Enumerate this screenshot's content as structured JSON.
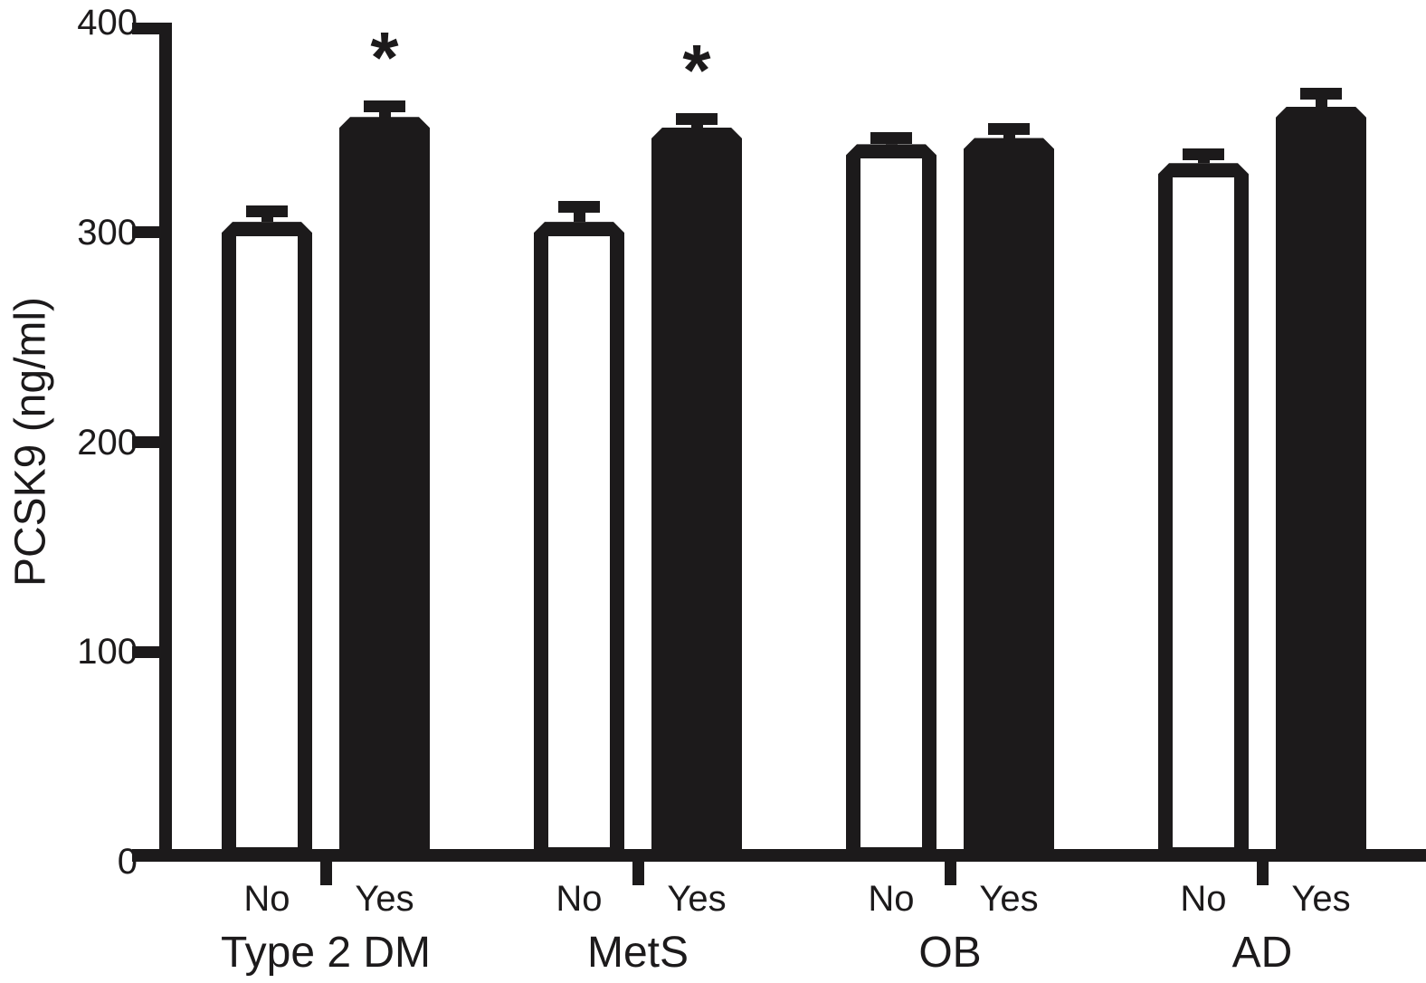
{
  "figure": {
    "background": "#ffffff",
    "ink_color": "#1c1a1b",
    "bar_fill_open": "#ffffff",
    "bar_fill_solid": "#1c1a1b"
  },
  "chart_data": {
    "type": "bar",
    "title": "",
    "xlabel": "",
    "ylabel": "PCSK9 (ng/ml)",
    "ylim": [
      0,
      400
    ],
    "yticks": [
      0,
      100,
      200,
      300,
      400
    ],
    "grid": false,
    "legend": "none",
    "error_bars": "SEM, upper only, capped",
    "significance_marker": "*",
    "groups": [
      {
        "label": "Type 2 DM",
        "bars": [
          {
            "label": "No",
            "value": 305,
            "error": 8,
            "fill": "open",
            "significant": false
          },
          {
            "label": "Yes",
            "value": 355,
            "error": 8,
            "fill": "solid",
            "significant": true
          }
        ]
      },
      {
        "label": "MetS",
        "bars": [
          {
            "label": "No",
            "value": 305,
            "error": 10,
            "fill": "open",
            "significant": false
          },
          {
            "label": "Yes",
            "value": 350,
            "error": 7,
            "fill": "solid",
            "significant": true
          }
        ]
      },
      {
        "label": "OB",
        "bars": [
          {
            "label": "No",
            "value": 342,
            "error": 6,
            "fill": "open",
            "significant": false
          },
          {
            "label": "Yes",
            "value": 345,
            "error": 7,
            "fill": "solid",
            "significant": false
          }
        ]
      },
      {
        "label": "AD",
        "bars": [
          {
            "label": "No",
            "value": 333,
            "error": 7,
            "fill": "open",
            "significant": false
          },
          {
            "label": "Yes",
            "value": 360,
            "error": 9,
            "fill": "solid",
            "significant": false
          }
        ]
      }
    ]
  }
}
